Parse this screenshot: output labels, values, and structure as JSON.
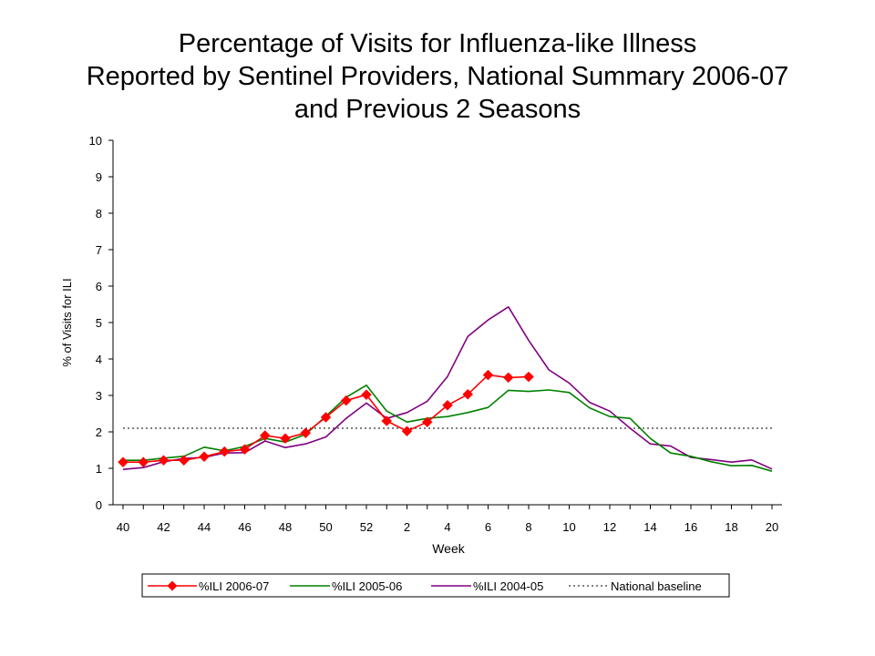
{
  "title_lines": [
    "Percentage of Visits for Influenza-like Illness",
    "Reported by Sentinel Providers, National Summary 2006-07",
    "and Previous 2 Seasons"
  ],
  "chart_data": {
    "type": "line",
    "title": "Percentage of Visits for Influenza-like Illness Reported by Sentinel Providers, National Summary 2006-07 and Previous 2 Seasons",
    "xlabel": "Week",
    "ylabel": "% of Visits for ILI",
    "ylim": [
      0,
      10
    ],
    "yticks": [
      "0",
      "1",
      "2",
      "3",
      "4",
      "5",
      "6",
      "7",
      "8",
      "9",
      "10"
    ],
    "weeks": [
      40,
      41,
      42,
      43,
      44,
      45,
      46,
      47,
      48,
      49,
      50,
      51,
      52,
      1,
      2,
      3,
      4,
      5,
      6,
      7,
      8,
      9,
      10,
      11,
      12,
      13,
      14,
      15,
      16,
      17,
      18,
      19,
      20
    ],
    "xtick_labels": [
      "40",
      "42",
      "44",
      "46",
      "48",
      "50",
      "52",
      "2",
      "4",
      "6",
      "8",
      "10",
      "12",
      "14",
      "16",
      "18",
      "20"
    ],
    "grid": false,
    "legend_position": "bottom",
    "series": [
      {
        "name": "%ILI 2006-07",
        "color": "#ff0000",
        "marker": "diamond",
        "values": [
          1.17,
          1.17,
          1.22,
          1.22,
          1.32,
          1.46,
          1.52,
          1.9,
          1.82,
          1.97,
          2.4,
          2.86,
          3.02,
          2.3,
          2.02,
          2.27,
          2.73,
          3.03,
          3.56,
          3.49,
          3.51
        ]
      },
      {
        "name": "%ILI 2005-06",
        "color": "#008000",
        "marker": "none",
        "values": [
          1.22,
          1.22,
          1.28,
          1.33,
          1.58,
          1.48,
          1.6,
          1.82,
          1.72,
          1.93,
          2.43,
          2.95,
          3.28,
          2.57,
          2.27,
          2.37,
          2.42,
          2.53,
          2.67,
          3.14,
          3.11,
          3.15,
          3.08,
          2.66,
          2.42,
          2.37,
          1.82,
          1.42,
          1.33,
          1.18,
          1.07,
          1.08,
          0.92
        ]
      },
      {
        "name": "%ILI 2004-05",
        "color": "#800080",
        "marker": "none",
        "values": [
          0.97,
          1.02,
          1.18,
          1.27,
          1.3,
          1.42,
          1.43,
          1.75,
          1.57,
          1.67,
          1.86,
          2.37,
          2.79,
          2.37,
          2.53,
          2.84,
          3.52,
          4.62,
          5.07,
          5.43,
          4.51,
          3.7,
          3.34,
          2.81,
          2.57,
          2.1,
          1.67,
          1.61,
          1.3,
          1.24,
          1.17,
          1.23,
          0.98
        ]
      },
      {
        "name": "National baseline",
        "color": "#000000",
        "style": "dotted",
        "value": 2.1
      }
    ]
  }
}
